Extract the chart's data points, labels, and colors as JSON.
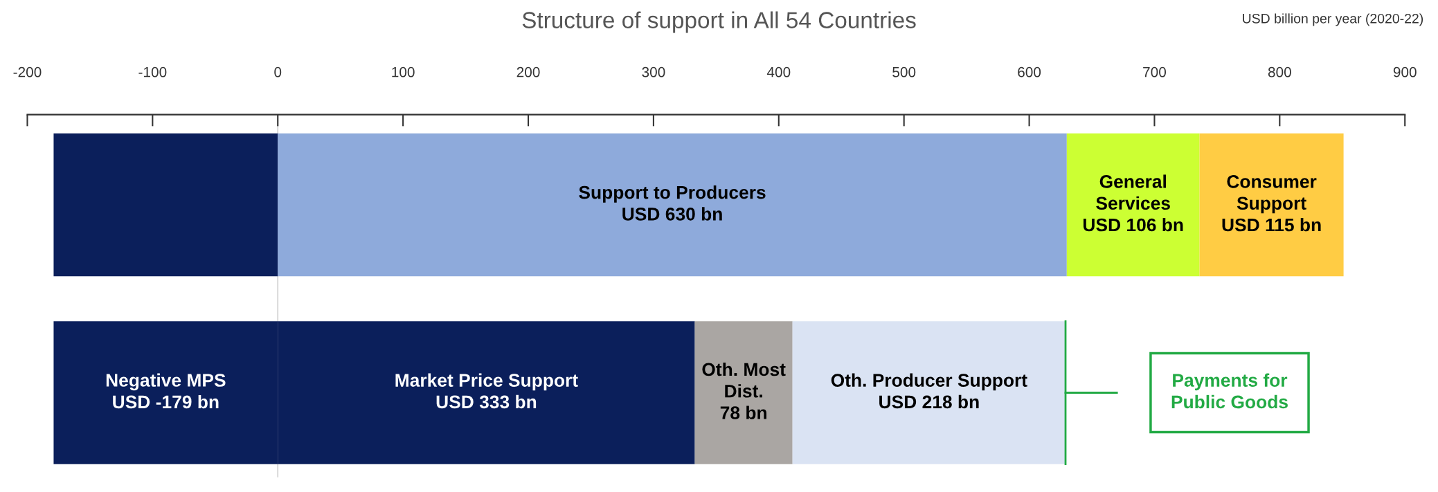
{
  "chart_data": {
    "type": "bar",
    "orientation": "horizontal",
    "stacked": true,
    "title": "Structure of support in All 54 Countries",
    "categories": [
      null,
      null
    ],
    "series": [
      {
        "color": "#0b1f5b",
        "values": [
          -179,
          null
        ]
      },
      {
        "name": "Negative MPS",
        "color": "#0b1f5b",
        "values": [
          null,
          -179
        ],
        "value_labels": [
          null,
          "USD -179 bn"
        ]
      },
      {
        "name": "Support to Producers",
        "color": "#8eaadb",
        "values": [
          630,
          null
        ],
        "value_labels": [
          "USD 630 bn",
          null
        ]
      },
      {
        "name": "General\nServices",
        "color": "#ccff33",
        "values": [
          106,
          null
        ],
        "value_labels": [
          "USD 106 bn",
          null
        ]
      },
      {
        "name": "Consumer\nSupport",
        "color": "#ffcc44",
        "values": [
          115,
          null
        ],
        "value_labels": [
          "USD 115 bn",
          null
        ]
      },
      {
        "name": "Market Price Support",
        "color": "#0b1f5b",
        "values": [
          null,
          333
        ],
        "value_labels": [
          null,
          "USD 333 bn"
        ]
      },
      {
        "name": "Oth. Most\nDist.",
        "color": "#aaa6a3",
        "values": [
          null,
          78
        ],
        "value_labels": [
          null,
          "78 bn"
        ]
      },
      {
        "name": "Oth. Producer Support",
        "color": "#dae3f3",
        "values": [
          null,
          218
        ],
        "value_labels": [
          null,
          "USD 218 bn"
        ]
      }
    ],
    "xlim": [
      -200,
      900
    ],
    "xticks": [
      -200,
      -100,
      0,
      100,
      200,
      300,
      400,
      500,
      600,
      700,
      800,
      900
    ],
    "tick_labels": "x",
    "grid": false,
    "legend": false,
    "ref_lines": [
      {
        "axis": "x",
        "value": 0,
        "color": "#d0d0d0"
      }
    ],
    "annotations": [
      "USD billion per year (2020-22)",
      "Payments for\nPublic Goods"
    ]
  }
}
